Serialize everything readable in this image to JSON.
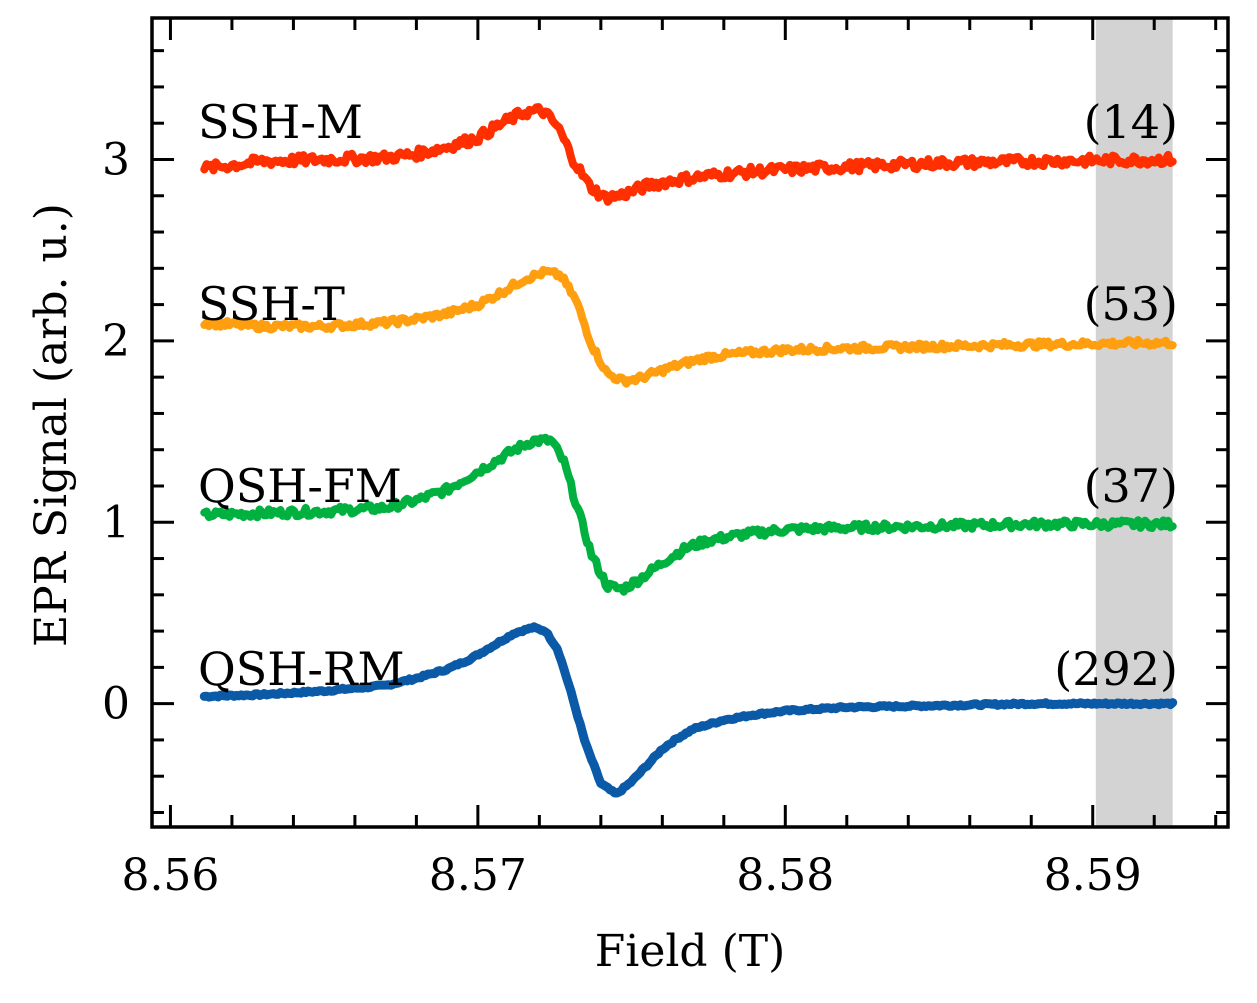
{
  "chart_data": {
    "type": "line",
    "title": "",
    "xlabel": "Field (T)",
    "ylabel": "EPR Signal (arb. u.)",
    "xlim": [
      8.5594,
      8.5944
    ],
    "ylim": [
      -0.68,
      3.78
    ],
    "x_ticks": [
      8.56,
      8.57,
      8.58,
      8.59
    ],
    "x_tick_labels": [
      "8.56",
      "8.57",
      "8.58",
      "8.59"
    ],
    "y_ticks": [
      0,
      1,
      2,
      3
    ],
    "y_tick_labels": [
      "0",
      "1",
      "2",
      "3"
    ],
    "shaded_region": {
      "x": [
        8.5901,
        8.5926
      ],
      "color": "#d3d3d3"
    },
    "series": [
      {
        "name": "QSH-RM",
        "label": "QSH-RM",
        "factor": "(292)",
        "color": "#0b5aa8",
        "offset": 0,
        "x": [
          8.5611,
          8.563,
          8.565,
          8.567,
          8.568,
          8.569,
          8.5698,
          8.5705,
          8.5712,
          8.5718,
          8.5722,
          8.5726,
          8.573,
          8.5735,
          8.574,
          8.5745,
          8.575,
          8.5755,
          8.576,
          8.5765,
          8.577,
          8.578,
          8.579,
          8.58,
          8.582,
          8.585,
          8.588,
          8.5926
        ],
        "y": [
          0.04,
          0.05,
          0.07,
          0.1,
          0.14,
          0.19,
          0.25,
          0.32,
          0.39,
          0.42,
          0.4,
          0.3,
          0.08,
          -0.22,
          -0.44,
          -0.5,
          -0.43,
          -0.34,
          -0.25,
          -0.19,
          -0.14,
          -0.09,
          -0.06,
          -0.04,
          -0.02,
          -0.01,
          0.0,
          0.0
        ]
      },
      {
        "name": "QSH-FM",
        "label": "QSH-FM",
        "factor": "(37)",
        "color": "#00b140",
        "offset": 1,
        "x": [
          8.5611,
          8.563,
          8.565,
          8.567,
          8.568,
          8.569,
          8.5698,
          8.5705,
          8.5712,
          8.5718,
          8.5724,
          8.5728,
          8.5732,
          8.5737,
          8.5742,
          8.5747,
          8.5752,
          8.5757,
          8.5762,
          8.5768,
          8.5775,
          8.5785,
          8.58,
          8.582,
          8.585,
          8.588,
          8.5926
        ],
        "y": [
          1.04,
          1.05,
          1.06,
          1.08,
          1.12,
          1.18,
          1.26,
          1.33,
          1.4,
          1.45,
          1.45,
          1.33,
          1.1,
          0.82,
          0.65,
          0.63,
          0.68,
          0.74,
          0.8,
          0.86,
          0.9,
          0.93,
          0.96,
          0.97,
          0.98,
          0.99,
          0.99
        ]
      },
      {
        "name": "SSH-T",
        "label": "SSH-T",
        "factor": "(53)",
        "color": "#ff9e0f",
        "offset": 2,
        "x": [
          8.5611,
          8.563,
          8.565,
          8.567,
          8.568,
          8.569,
          8.57,
          8.5708,
          8.5715,
          8.5722,
          8.5727,
          8.5732,
          8.5737,
          8.5742,
          8.5747,
          8.5752,
          8.5757,
          8.5762,
          8.5768,
          8.5775,
          8.5785,
          8.58,
          8.582,
          8.585,
          8.588,
          8.5926
        ],
        "y": [
          2.1,
          2.08,
          2.08,
          2.1,
          2.12,
          2.15,
          2.2,
          2.27,
          2.34,
          2.38,
          2.36,
          2.22,
          1.98,
          1.82,
          1.78,
          1.79,
          1.82,
          1.85,
          1.88,
          1.91,
          1.93,
          1.95,
          1.96,
          1.97,
          1.98,
          1.99
        ]
      },
      {
        "name": "SSH-M",
        "label": "SSH-M",
        "factor": "(14)",
        "color": "#ff2f00",
        "offset": 3,
        "x": [
          8.5611,
          8.563,
          8.565,
          8.567,
          8.568,
          8.569,
          8.57,
          8.5708,
          8.5715,
          8.5721,
          8.5726,
          8.5731,
          8.5736,
          8.5741,
          8.5746,
          8.5751,
          8.5756,
          8.5762,
          8.577,
          8.578,
          8.5795,
          8.582,
          8.585,
          8.588,
          8.5926
        ],
        "y": [
          2.95,
          2.99,
          3.0,
          3.01,
          3.03,
          3.07,
          3.12,
          3.2,
          3.26,
          3.27,
          3.18,
          3.0,
          2.86,
          2.79,
          2.8,
          2.83,
          2.86,
          2.88,
          2.9,
          2.92,
          2.94,
          2.96,
          2.98,
          2.99,
          3.0
        ]
      }
    ]
  }
}
